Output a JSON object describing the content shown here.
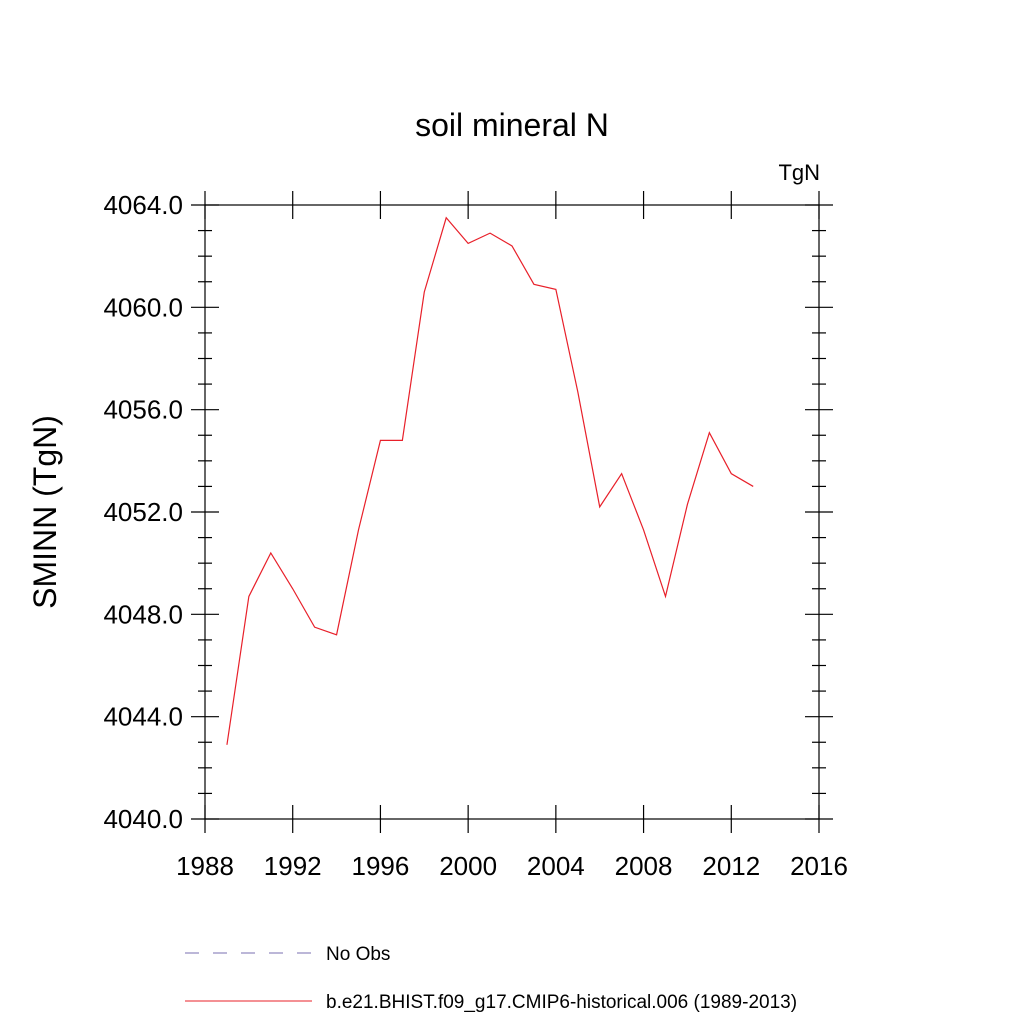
{
  "chart_data": {
    "type": "line",
    "title": "soil mineral N",
    "units_label": "TgN",
    "xlabel": "",
    "ylabel": "SMINN  (TgN)",
    "xlim": [
      1988,
      2016
    ],
    "ylim": [
      4040,
      4064
    ],
    "x_ticks": [
      1988,
      1992,
      1996,
      2000,
      2004,
      2008,
      2012,
      2016
    ],
    "x_tick_labels": [
      "1988",
      "1992",
      "1996",
      "2000",
      "2004",
      "2008",
      "2012",
      "2016"
    ],
    "y_ticks": [
      4040,
      4044,
      4048,
      4052,
      4056,
      4060,
      4064
    ],
    "y_tick_labels": [
      "4040.0",
      "4044.0",
      "4048.0",
      "4052.0",
      "4056.0",
      "4060.0",
      "4064.0"
    ],
    "grid": false,
    "legend_position": "bottom",
    "series": [
      {
        "name": "No Obs",
        "color": "#7a6fb0",
        "style": "dashed",
        "x": [],
        "y": []
      },
      {
        "name": "b.e21.BHIST.f09_g17.CMIP6-historical.006 (1989-2013)",
        "color": "#e8202a",
        "style": "solid",
        "x": [
          1989,
          1990,
          1991,
          1992,
          1993,
          1994,
          1995,
          1996,
          1997,
          1998,
          1999,
          2000,
          2001,
          2002,
          2003,
          2004,
          2005,
          2006,
          2007,
          2008,
          2009,
          2010,
          2011,
          2012,
          2013
        ],
        "y": [
          4042.9,
          4048.7,
          4050.4,
          4049.0,
          4047.5,
          4047.2,
          4051.3,
          4054.8,
          4054.8,
          4060.6,
          4063.5,
          4062.5,
          4062.9,
          4062.4,
          4060.9,
          4060.7,
          4056.7,
          4052.2,
          4053.5,
          4051.3,
          4048.7,
          4052.3,
          4055.1,
          4053.5,
          4053.0
        ]
      }
    ]
  }
}
